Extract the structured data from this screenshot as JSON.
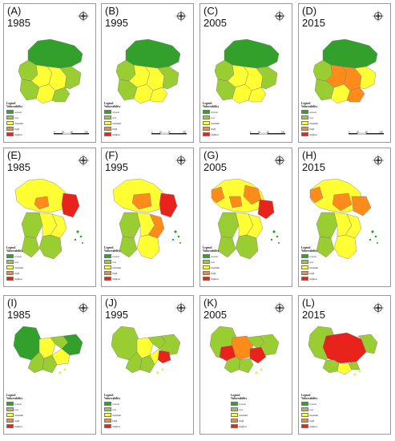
{
  "panels": [
    {
      "label": "(A)",
      "year": "1985"
    },
    {
      "label": "(B)",
      "year": "1995"
    },
    {
      "label": "(C)",
      "year": "2005"
    },
    {
      "label": "(D)",
      "year": "2015"
    },
    {
      "label": "(E)",
      "year": "1985"
    },
    {
      "label": "(F)",
      "year": "1995"
    },
    {
      "label": "(G)",
      "year": "2005"
    },
    {
      "label": "(H)",
      "year": "2015"
    },
    {
      "label": "(I)",
      "year": "1985"
    },
    {
      "label": "(J)",
      "year": "1995"
    },
    {
      "label": "(K)",
      "year": "2005"
    },
    {
      "label": "(L)",
      "year": "2015"
    }
  ],
  "legend": {
    "title": "Legend",
    "subtitle": "Vulnerability",
    "items": [
      {
        "label": "lowest",
        "color": "#33a02c"
      },
      {
        "label": "low",
        "color": "#9acd32"
      },
      {
        "label": "medium",
        "color": "#ffff33"
      },
      {
        "label": "high",
        "color": "#ff8c1a"
      },
      {
        "label": "highest",
        "color": "#e8231c"
      }
    ]
  },
  "scale_ticks": [
    "0",
    "25",
    "50",
    "100"
  ],
  "colors": {
    "lowest": "#33a02c",
    "low": "#9acd32",
    "medium": "#ffff33",
    "high": "#ff8c1a",
    "highest": "#e8231c",
    "border": "#9a9a9a"
  }
}
